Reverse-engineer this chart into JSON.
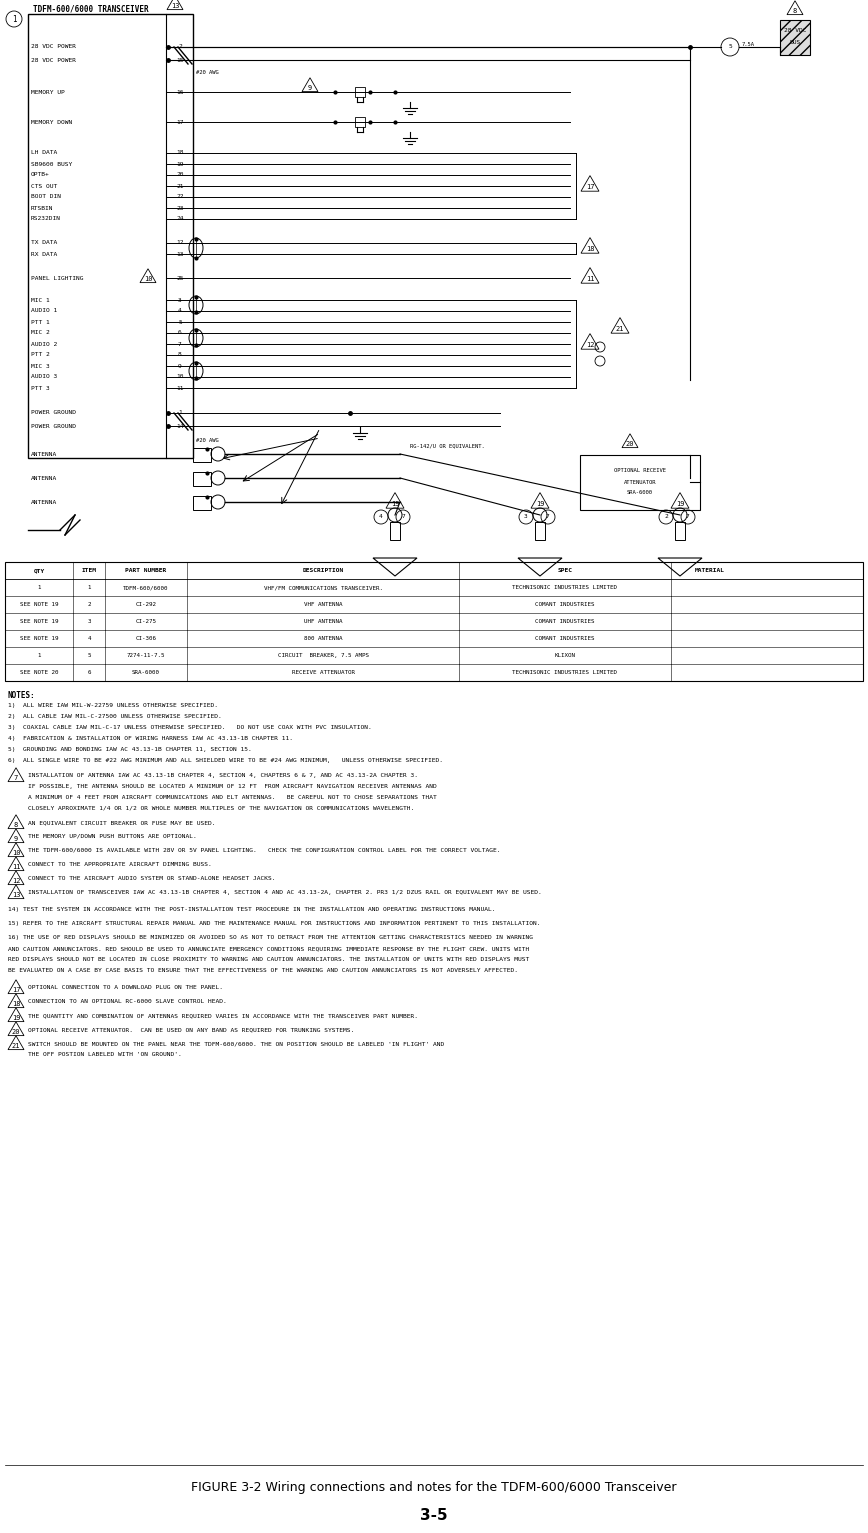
{
  "title": "FIGURE 3-2 Wiring connections and notes for the TDFM-600/6000 Transceiver",
  "page_num": "3-5",
  "bg_color": "#ffffff",
  "fig_width": 8.68,
  "fig_height": 15.33,
  "diagram_title": "TDFM-600/6000 TRANSCEIVER",
  "table_headers": [
    "QTY",
    "ITEM",
    "PART NUMBER",
    "DESCRIPTION",
    "SPEC",
    "MATERIAL"
  ],
  "table_rows": [
    [
      "1",
      "1",
      "TDFM-600/6000",
      "VHF/FM COMMUNICATIONS TRANSCEIVER.",
      "TECHNISONIC INDUSTRIES LIMITED",
      ""
    ],
    [
      "SEE NOTE 19",
      "2",
      "CI-292",
      "VHF ANTENNA",
      "COMANT INDUSTRIES",
      ""
    ],
    [
      "SEE NOTE 19",
      "3",
      "CI-275",
      "UHF ANTENNA",
      "COMANT INDUSTRIES",
      ""
    ],
    [
      "SEE NOTE 19",
      "4",
      "CI-306",
      "800 ANTENNA",
      "COMANT INDUSTRIES",
      ""
    ],
    [
      "1",
      "5",
      "7274-11-7.5",
      "CIRCUIT  BREAKER, 7.5 AMPS",
      "KLIXON",
      ""
    ],
    [
      "SEE NOTE 20",
      "6",
      "SRA-6000",
      "RECEIVE ATTENUATOR",
      "TECHNISONIC INDUSTRIES LIMITED",
      ""
    ]
  ],
  "notes_title": "NOTES:",
  "notes": [
    "1)  ALL WIRE IAW MIL-W-22759 UNLESS OTHERWISE SPECIFIED.",
    "2)  ALL CABLE IAW MIL-C-27500 UNLESS OTHERWISE SPECIFIED.",
    "3)  COAXIAL CABLE IAW MIL-C-17 UNLESS OTHERWISE SPECIFIED.   DO NOT USE COAX WITH PVC INSULATION.",
    "4)  FABRICATION & INSTALLATION OF WIRING HARNESS IAW AC 43.13-1B CHAPTER 11.",
    "5)  GROUNDING AND BONDING IAW AC 43.13-1B CHAPTER 11, SECTION 15.",
    "6)  ALL SINGLE WIRE TO BE #22 AWG MINIMUM AND ALL SHIELDED WIRE TO BE #24 AWG MINIMUM,   UNLESS OTHERWISE SPECIFIED."
  ],
  "triangle_notes": [
    {
      "num": "7",
      "text": "INSTALLATION OF ANTENNA IAW AC 43.13-1B CHAPTER 4, SECTION 4, CHAPTERS 6 & 7, AND AC 43.13-2A CHAPTER 3.\n    IF POSSIBLE, THE ANTENNA SHOULD BE LOCATED A MINIMUM OF 12 FT  FROM AIRCRAFT NAVIGATION RECEIVER ANTENNAS AND\n    A MINIMUM OF 4 FEET FROM AIRCRAFT COMMUNICATIONS AND ELT ANTENNAS.   BE CAREFUL NOT TO CHOSE SEPARATIONS THAT\n    CLOSELY APROXIMATE 1/4 OR 1/2 OR WHOLE NUMBER MULTIPLES OF THE NAVIGATION OR COMMUNICATIONS WAVELENGTH."
    },
    {
      "num": "8",
      "text": "AN EQUIVALENT CIRCUIT BREAKER OR FUSE MAY BE USED."
    },
    {
      "num": "9",
      "text": "THE MEMORY UP/DOWN PUSH BUTTONS ARE OPTIONAL."
    },
    {
      "num": "10",
      "text": "THE TDFM-600/6000 IS AVAILABLE WITH 28V OR 5V PANEL LIGHTING.   CHECK THE CONFIGURATION CONTROL LABEL FOR THE CORRECT VOLTAGE."
    },
    {
      "num": "11",
      "text": "CONNECT TO THE APPROPRIATE AIRCRAFT DIMMING BUSS."
    },
    {
      "num": "12",
      "text": "CONNECT TO THE AIRCRAFT AUDIO SYSTEM OR STAND-ALONE HEADSET JACKS."
    },
    {
      "num": "13",
      "text": "INSTALLATION OF TRANSCEIVER IAW AC 43.13-1B CHAPTER 4, SECTION 4 AND AC 43.13-2A, CHAPTER 2. PR3 1/2 DZUS RAIL OR EQUIVALENT MAY BE USED."
    }
  ],
  "plain_notes": [
    "14) TEST THE SYSTEM IN ACCORDANCE WITH THE POST-INSTALLATION TEST PROCEDURE IN THE INSTALLATION AND OPERATING INSTRUCTIONS MANUAL.",
    "15) REFER TO THE AIRCRAFT STRUCTURAL REPAIR MANUAL AND THE MAINTENANCE MANUAL FOR INSTRUCTIONS AND INFORMATION PERTINENT TO THIS INSTALLATION.",
    "16) THE USE OF RED DISPLAYS SHOULD BE MINIMIZED OR AVOIDED SO AS NOT TO DETRACT FROM THE ATTENTION GETTING CHARACTERISTICS NEEDED IN WARNING\n    AND CAUTION ANNUNCIATORS. RED SHOULD BE USED TO ANNUNCIATE EMERGENCY CONDITIONS REQUIRING IMMEDIATE RESPONSE BY THE FLIGHT CREW. UNITS WITH\n    RED DISPLAYS SHOULD NOT BE LOCATED IN CLOSE PROXIMITY TO WARNING AND CAUTION ANNUNCIATORS. THE INSTALLATION OF UNITS WITH RED DISPLAYS MUST\n    BE EVALUATED ON A CASE BY CASE BASIS TO ENSURE THAT THE EFFECTIVENESS OF THE WARNING AND CAUTION ANNUNCIATORS IS NOT ADVERSELY AFFECTED."
  ],
  "more_triangle_notes": [
    {
      "num": "17",
      "text": "OPTIONAL CONNECTION TO A DOWNLOAD PLUG ON THE PANEL."
    },
    {
      "num": "18",
      "text": "CONNECTION TO AN OPTIONAL RC-6000 SLAVE CONTROL HEAD."
    },
    {
      "num": "19",
      "text": "THE QUANTITY AND COMBINATION OF ANTENNAS REQUIRED VARIES IN ACCORDANCE WITH THE TRANSCEIVER PART NUMBER."
    },
    {
      "num": "20",
      "text": "OPTIONAL RECEIVE ATTENUATOR.  CAN BE USED ON ANY BAND AS REQUIRED FOR TRUNKING SYSTEMS."
    },
    {
      "num": "21",
      "text": "SWITCH SHOULD BE MOUNTED ON THE PANEL NEAR THE TDFM-600/6000. THE ON POSITION SHOULD BE LABELED 'IN FLIGHT' AND\n    THE OFF POSTION LABELED WITH 'ON GROUND'."
    }
  ]
}
